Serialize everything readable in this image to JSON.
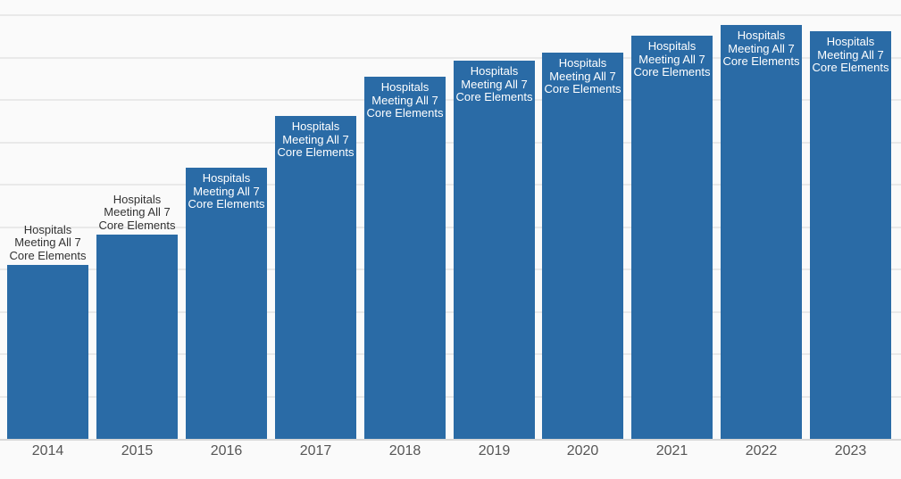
{
  "chart_data": {
    "type": "bar",
    "title": "",
    "xlabel": "",
    "ylabel": "",
    "series_name": "Hospitals Meeting All 7 Core Elements",
    "categories": [
      "2014",
      "2015",
      "2016",
      "2017",
      "2018",
      "2019",
      "2020",
      "2021",
      "2022",
      "2023"
    ],
    "values": [
      41.0,
      48.1,
      64.0,
      76.1,
      85.3,
      89.1,
      91.0,
      95.0,
      97.5,
      96.2
    ],
    "bar_label": "Hospitals Meeting All 7 Core Elements",
    "bar_label_lines": [
      "Hospitals",
      "Meeting All 7",
      "Core Elements"
    ],
    "label_positions": [
      "above",
      "above",
      "inside",
      "inside",
      "inside",
      "inside",
      "inside",
      "inside",
      "inside",
      "inside"
    ],
    "ylim": [
      0,
      100
    ],
    "y_gridline_step": 10,
    "y_axis_tick_labels_visible": false,
    "legend_position": "none",
    "grid": true,
    "colors": {
      "bar": "#2a6ba6",
      "background": "#fafafa",
      "gridline": "#e9e9e9",
      "baseline": "#d8d8d8",
      "label_inside": "#ffffff",
      "label_above": "#333333",
      "axis_text": "#565656"
    }
  }
}
